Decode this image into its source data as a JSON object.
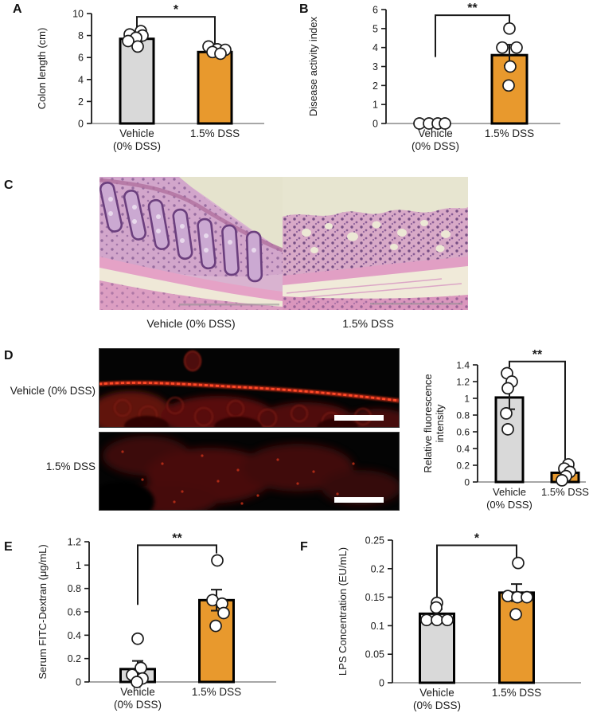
{
  "figure": {
    "panels": {
      "A": {
        "letter": "A"
      },
      "B": {
        "letter": "B"
      },
      "C": {
        "letter": "C",
        "captions": [
          "Vehicle (0% DSS)",
          "1.5% DSS"
        ]
      },
      "D": {
        "letter": "D",
        "row_labels": [
          "Vehicle (0% DSS)",
          "1.5% DSS"
        ]
      },
      "E": {
        "letter": "E"
      },
      "F": {
        "letter": "F"
      }
    }
  },
  "colors": {
    "control_bar": "#D9D9D9",
    "dss_bar": "#E8992D",
    "bar_outline": "#000000",
    "data_point_fill": "#FFFFFF",
    "axis_line": "#8A8A8A"
  },
  "chart_data": [
    {
      "panel": "A",
      "type": "bar",
      "ylabel": "Colon length (cm)",
      "ylim": [
        0,
        10
      ],
      "yticks": [
        "0",
        "2",
        "4",
        "6",
        "8",
        "10"
      ],
      "categories": [
        "Vehicle\n(0% DSS)",
        "1.5% DSS"
      ],
      "bars": [
        {
          "label": "Vehicle (0% DSS)",
          "value": 7.7,
          "error": 0.3,
          "color": "#D9D9D9"
        },
        {
          "label": "1.5% DSS",
          "value": 6.5,
          "error": 0.25,
          "color": "#E8992D"
        }
      ],
      "points": [
        [
          8.4,
          8.1,
          8.0,
          7.8,
          7.5,
          7.0
        ],
        [
          7.0,
          6.75,
          6.7,
          6.5,
          6.35
        ]
      ],
      "significance": {
        "label": "*",
        "y": 9.7,
        "left_to": 8.5,
        "right_to": 7.15
      }
    },
    {
      "panel": "B",
      "type": "bar",
      "ylabel": "Disease activity index",
      "ylim": [
        0,
        6
      ],
      "yticks": [
        "0",
        "1",
        "2",
        "3",
        "4",
        "5",
        "6"
      ],
      "categories": [
        "Vehicle\n(0% DSS)",
        "1.5% DSS"
      ],
      "bars": [
        {
          "label": "Vehicle (0% DSS)",
          "value": 0,
          "error": 0,
          "color": "#D9D9D9"
        },
        {
          "label": "1.5% DSS",
          "value": 3.6,
          "error": 0.55,
          "color": "#E8992D"
        }
      ],
      "points": [
        [
          0,
          0,
          0,
          0
        ],
        [
          5.0,
          4.0,
          4.0,
          3.0,
          2.0
        ]
      ],
      "significance": {
        "label": "**",
        "y": 5.7,
        "left_to": 3.5,
        "right_to": 5.25
      }
    },
    {
      "panel": "D",
      "type": "bar",
      "ylabel": "Relative fluorescence\nintensity",
      "ylim": [
        0,
        1.4
      ],
      "yticks": [
        "0",
        "0.2",
        "0.4",
        "0.6",
        "0.8",
        "1",
        "1.2",
        "1.4"
      ],
      "categories": [
        "Vehicle\n(0% DSS)",
        "1.5% DSS"
      ],
      "bars": [
        {
          "label": "Vehicle (0% DSS)",
          "value": 1.01,
          "error": 0.14,
          "color": "#D9D9D9"
        },
        {
          "label": "1.5% DSS",
          "value": 0.11,
          "error": 0.03,
          "color": "#E8992D"
        }
      ],
      "points": [
        [
          1.3,
          1.2,
          1.12,
          0.82,
          0.63
        ],
        [
          0.21,
          0.16,
          0.12,
          0.07,
          0.02
        ]
      ],
      "significance": {
        "label": "**",
        "y": 1.44,
        "left_to": 1.37,
        "right_to": 0.27
      }
    },
    {
      "panel": "E",
      "type": "bar",
      "ylabel": "Serum FITC-Dextran (μg/mL)",
      "ylim": [
        0,
        1.2
      ],
      "yticks": [
        "0",
        "0.2",
        "0.4",
        "0.6",
        "0.8",
        "1",
        "1.2"
      ],
      "categories": [
        "Vehicle\n(0% DSS)",
        "1.5% DSS"
      ],
      "bars": [
        {
          "label": "Vehicle (0% DSS)",
          "value": 0.11,
          "error": 0.07,
          "color": "#D9D9D9"
        },
        {
          "label": "1.5% DSS",
          "value": 0.7,
          "error": 0.09,
          "color": "#E8992D"
        }
      ],
      "points": [
        [
          0.37,
          0.12,
          0.06,
          0.03,
          0
        ],
        [
          1.04,
          0.7,
          0.67,
          0.59,
          0.48
        ]
      ],
      "significance": {
        "label": "**",
        "y": 1.17,
        "left_to": 0.66,
        "right_to": 1.1
      }
    },
    {
      "panel": "F",
      "type": "bar",
      "ylabel": "LPS Concentration (EU/mL)",
      "ylim": [
        0,
        0.25
      ],
      "yticks": [
        "0",
        "0.05",
        "0.1",
        "0.15",
        "0.2",
        "0.25"
      ],
      "categories": [
        "Vehicle\n(0% DSS)",
        "1.5% DSS"
      ],
      "bars": [
        {
          "label": "Vehicle (0% DSS)",
          "value": 0.121,
          "error": 0.008,
          "color": "#D9D9D9"
        },
        {
          "label": "1.5% DSS",
          "value": 0.158,
          "error": 0.015,
          "color": "#E8992D"
        }
      ],
      "points": [
        [
          0.14,
          0.132,
          0.11,
          0.11,
          0.11
        ],
        [
          0.21,
          0.152,
          0.15,
          0.15,
          0.12
        ]
      ],
      "significance": {
        "label": "*",
        "y": 0.241,
        "left_to": 0.135,
        "right_to": 0.219
      }
    }
  ]
}
